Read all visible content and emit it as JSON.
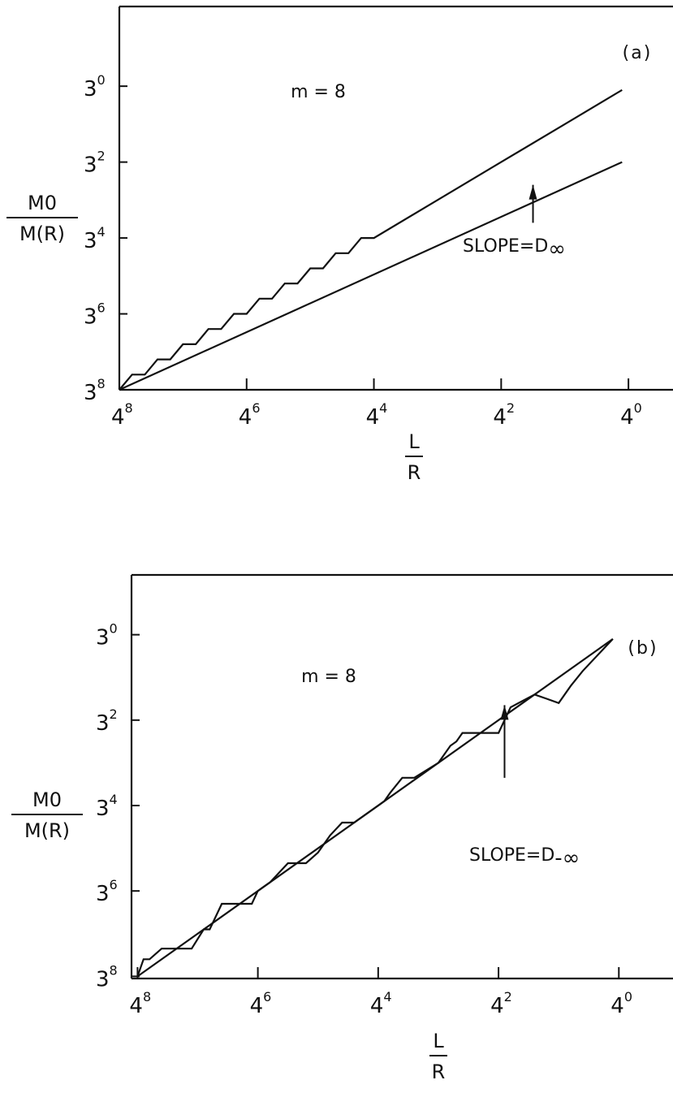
{
  "chart_data": [
    {
      "panel": "(a)",
      "type": "line",
      "annotation": "m = 8",
      "slope_label": "SLOPE=D",
      "slope_subscript": "∞",
      "xlabel_num": "L",
      "xlabel_den": "R",
      "ylabel_num": "M0",
      "ylabel_den": "M(R)",
      "x_base": "4",
      "y_base": "3",
      "x_ticks": [
        8,
        6,
        4,
        2,
        0
      ],
      "x_minor_ticks": [
        8,
        7,
        6,
        5,
        4,
        3,
        2,
        1,
        0
      ],
      "y_ticks": [
        0,
        2,
        4,
        6,
        8
      ],
      "xlim": [
        8,
        -0.7
      ],
      "ylim": [
        8,
        -2.1
      ],
      "x_reversed": true,
      "y_reversed": true,
      "series": [
        {
          "x": [
            8.0,
            7.8,
            7.6,
            7.4,
            7.2,
            7.0,
            6.8,
            6.6,
            6.4,
            6.2,
            6.0,
            5.8,
            5.6,
            5.4,
            5.2,
            5.0,
            4.8,
            4.6,
            4.4,
            4.2,
            4.0,
            3.0,
            2.0,
            1.0,
            0.1
          ],
          "y": [
            8.0,
            7.6,
            7.6,
            7.2,
            7.2,
            6.8,
            6.8,
            6.4,
            6.4,
            6.0,
            6.0,
            5.6,
            5.6,
            5.2,
            5.2,
            4.8,
            4.8,
            4.4,
            4.4,
            4.0,
            4.0,
            3.0,
            2.0,
            1.0,
            0.1
          ]
        },
        {
          "x": [
            8.0,
            0.1
          ],
          "y": [
            8.0,
            2.0
          ]
        }
      ],
      "arrow_tip": [
        1.5,
        2.6
      ],
      "arrow_tail": [
        1.5,
        3.6
      ]
    },
    {
      "panel": "(b)",
      "type": "line",
      "annotation": "m = 8",
      "slope_label": "SLOPE=D",
      "slope_subscript": "-∞",
      "xlabel_num": "L",
      "xlabel_den": "R",
      "ylabel_num": "M0",
      "ylabel_den": "M(R)",
      "x_base": "4",
      "y_base": "3",
      "x_ticks": [
        8,
        6,
        4,
        2,
        0
      ],
      "y_ticks": [
        0,
        2,
        4,
        6,
        8
      ],
      "y_tick_labels": [
        "0",
        "2",
        "4",
        "6",
        "8"
      ],
      "xlim": [
        8.1,
        -0.9
      ],
      "ylim": [
        8.05,
        -1.4
      ],
      "x_reversed": true,
      "y_reversed": true,
      "series": [
        {
          "x": [
            8.0,
            7.9,
            7.8,
            7.6,
            7.1,
            6.9,
            6.8,
            6.6,
            6.1,
            6.0,
            5.9,
            5.8,
            5.5,
            5.2,
            5.0,
            4.9,
            4.8,
            4.6,
            4.4,
            4.0,
            3.9,
            3.8,
            3.6,
            3.4,
            3.0,
            2.95,
            2.9,
            2.8,
            2.7,
            2.6,
            2.0,
            1.9,
            1.8,
            1.4,
            1.2,
            1.0,
            0.8,
            0.6,
            0.1
          ],
          "y": [
            8.0,
            7.6,
            7.6,
            7.35,
            7.35,
            6.9,
            6.9,
            6.3,
            6.3,
            6.0,
            5.9,
            5.8,
            5.35,
            5.35,
            5.1,
            4.9,
            4.7,
            4.4,
            4.4,
            4.0,
            3.9,
            3.7,
            3.35,
            3.35,
            3.0,
            2.9,
            2.8,
            2.6,
            2.5,
            2.3,
            2.3,
            2.0,
            1.7,
            1.4,
            1.5,
            1.6,
            1.2,
            0.85,
            0.1
          ]
        },
        {
          "x": [
            8.0,
            0.1
          ],
          "y": [
            8.0,
            0.1
          ]
        }
      ],
      "arrow_tip": [
        1.9,
        1.65
      ],
      "arrow_tail": [
        1.9,
        3.35
      ]
    }
  ]
}
